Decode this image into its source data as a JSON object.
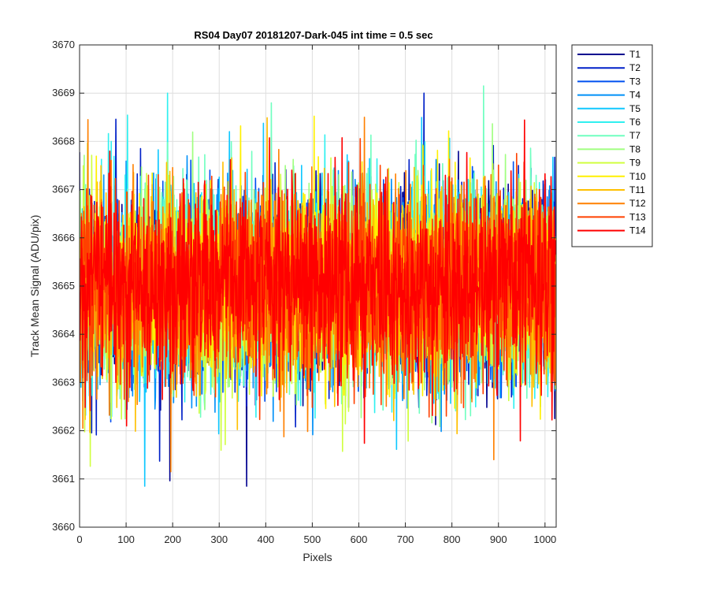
{
  "chart_data": {
    "type": "line",
    "title": "RS04 Day07 20181207-Dark-045 int time = 0.5 sec",
    "xlabel": "Pixels",
    "ylabel": "Track Mean Signal (ADU/pix)",
    "xlim": [
      0,
      1024
    ],
    "ylim": [
      3660,
      3670
    ],
    "xticks": [
      0,
      100,
      200,
      300,
      400,
      500,
      600,
      700,
      800,
      900,
      1000
    ],
    "yticks": [
      3660,
      3661,
      3662,
      3663,
      3664,
      3665,
      3666,
      3667,
      3668,
      3669,
      3670
    ],
    "grid": true,
    "legend_position": "outside-top-right",
    "n_points_per_series": 1024,
    "mean_level": 3665,
    "noise_std": 1.0,
    "series": [
      {
        "name": "T1",
        "color": "#00008F"
      },
      {
        "name": "T2",
        "color": "#0020C8"
      },
      {
        "name": "T3",
        "color": "#0050F0"
      },
      {
        "name": "T4",
        "color": "#0090F8"
      },
      {
        "name": "T5",
        "color": "#10C8FF"
      },
      {
        "name": "T6",
        "color": "#30F0F0"
      },
      {
        "name": "T7",
        "color": "#70FFC0"
      },
      {
        "name": "T8",
        "color": "#A0FF80"
      },
      {
        "name": "T9",
        "color": "#D0FF40"
      },
      {
        "name": "T10",
        "color": "#FFF000"
      },
      {
        "name": "T11",
        "color": "#FFC000"
      },
      {
        "name": "T12",
        "color": "#FF8000"
      },
      {
        "name": "T13",
        "color": "#FF4000"
      },
      {
        "name": "T14",
        "color": "#FF0000"
      }
    ],
    "annotated_peaks": [
      {
        "series": "T2",
        "x": 740,
        "y": 3669.0
      },
      {
        "series": "T7",
        "x": 868,
        "y": 3669.15
      },
      {
        "series": "T12",
        "x": 18,
        "y": 3668.45
      },
      {
        "series": "T12",
        "x": 612,
        "y": 3668.5
      },
      {
        "series": "T5",
        "x": 140,
        "y": 3660.85
      },
      {
        "series": "T12",
        "x": 196,
        "y": 3661.15
      },
      {
        "series": "T12",
        "x": 890,
        "y": 3661.4
      }
    ]
  }
}
